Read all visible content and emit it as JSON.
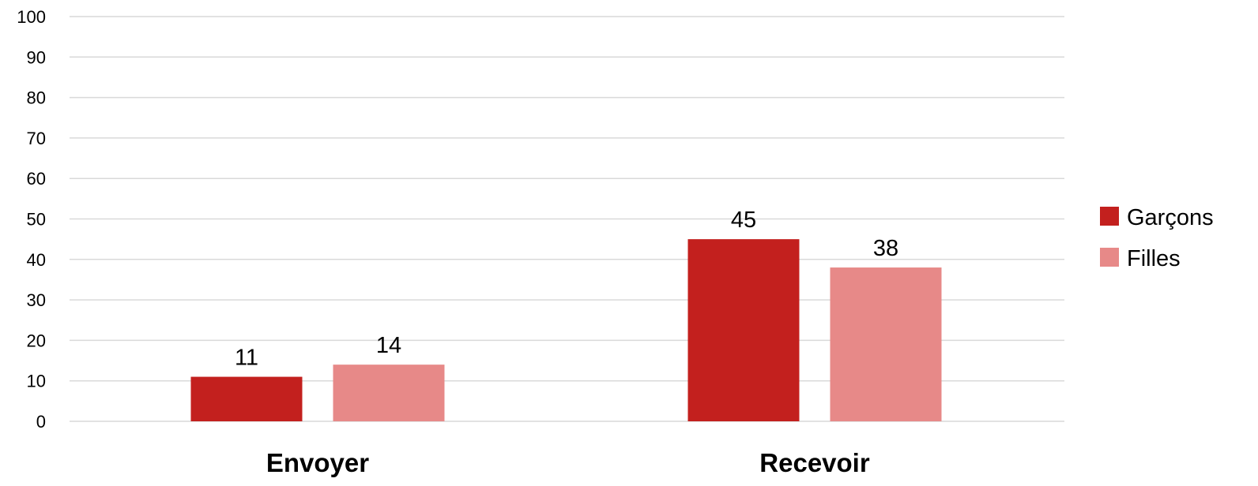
{
  "chart_data": {
    "type": "bar",
    "title": "",
    "xlabel": "",
    "ylabel": "",
    "categories": [
      "Envoyer",
      "Recevoir"
    ],
    "series": [
      {
        "name": "Garçons",
        "values": [
          11,
          45
        ],
        "color": "#c3201e"
      },
      {
        "name": "Filles",
        "values": [
          14,
          38
        ],
        "color": "#e78988"
      }
    ],
    "ylim": [
      0,
      100
    ],
    "yticks": [
      0,
      10,
      20,
      30,
      40,
      50,
      60,
      70,
      80,
      90,
      100
    ],
    "grid": true,
    "legend_position": "right",
    "data_labels": true
  }
}
